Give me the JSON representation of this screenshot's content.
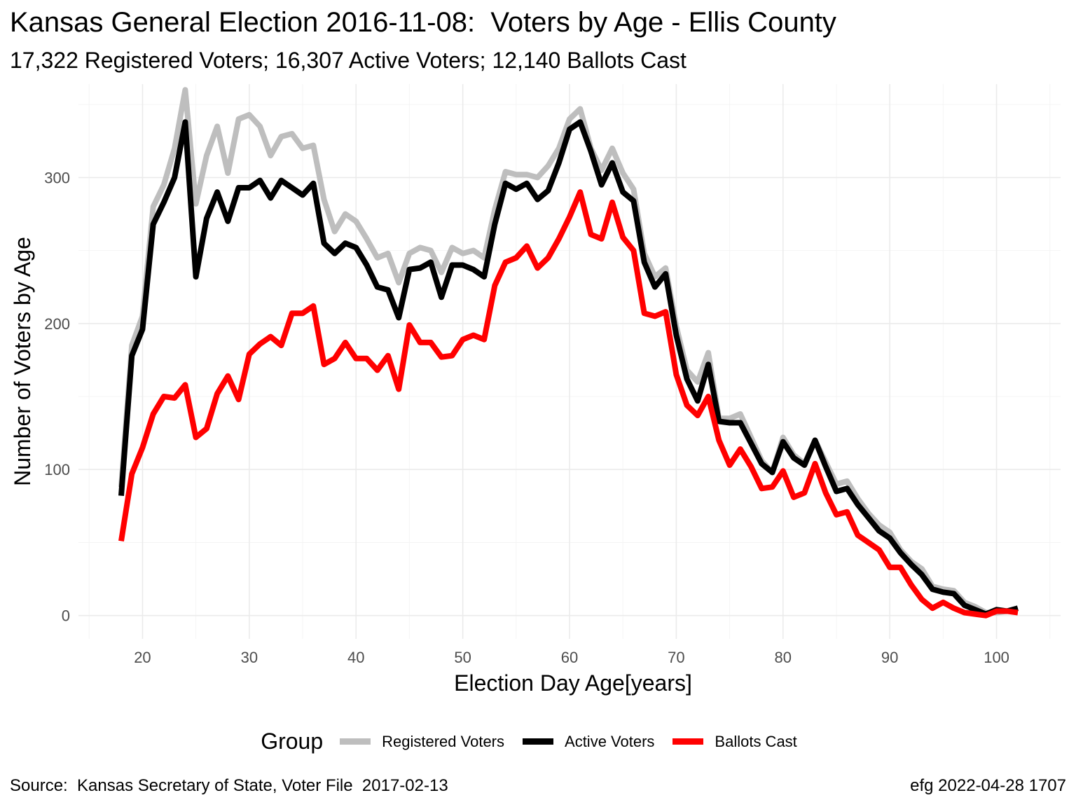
{
  "chart_data": {
    "type": "line",
    "title": "Kansas General Election 2016-11-08:  Voters by Age - Ellis County",
    "subtitle": "17,322 Registered Voters; 16,307 Active Voters; 12,140 Ballots Cast",
    "xlabel": "Election Day Age[years]",
    "ylabel": "Number of Voters by Age",
    "xlim": [
      14,
      106
    ],
    "ylim": [
      -16,
      364
    ],
    "x_ticks": [
      20,
      30,
      40,
      50,
      60,
      70,
      80,
      90,
      100
    ],
    "y_ticks": [
      0,
      100,
      200,
      300
    ],
    "grid": true,
    "legend_title": "Group",
    "legend_position": "bottom",
    "x": [
      18,
      19,
      20,
      21,
      22,
      23,
      24,
      25,
      26,
      27,
      28,
      29,
      30,
      31,
      32,
      33,
      34,
      35,
      36,
      37,
      38,
      39,
      40,
      41,
      42,
      43,
      44,
      45,
      46,
      47,
      48,
      49,
      50,
      51,
      52,
      53,
      54,
      55,
      56,
      57,
      58,
      59,
      60,
      61,
      62,
      63,
      64,
      65,
      66,
      67,
      68,
      69,
      70,
      71,
      72,
      73,
      74,
      75,
      76,
      77,
      78,
      79,
      80,
      81,
      82,
      83,
      84,
      85,
      86,
      87,
      88,
      89,
      90,
      91,
      92,
      93,
      94,
      95,
      96,
      97,
      98,
      99,
      100,
      101,
      102
    ],
    "series": [
      {
        "name": "Registered Voters",
        "color": "#bebebe",
        "values": [
          88,
          185,
          205,
          280,
          295,
          320,
          360,
          282,
          315,
          335,
          303,
          340,
          343,
          335,
          315,
          328,
          330,
          320,
          322,
          285,
          263,
          275,
          270,
          258,
          245,
          248,
          228,
          248,
          252,
          250,
          235,
          252,
          248,
          250,
          245,
          278,
          304,
          302,
          302,
          300,
          308,
          320,
          340,
          347,
          320,
          305,
          320,
          303,
          292,
          248,
          232,
          238,
          198,
          168,
          160,
          180,
          135,
          135,
          138,
          122,
          106,
          98,
          122,
          110,
          104,
          120,
          105,
          90,
          92,
          80,
          70,
          62,
          57,
          45,
          37,
          32,
          20,
          18,
          17,
          9,
          6,
          2,
          2,
          3,
          3
        ]
      },
      {
        "name": "Active Voters",
        "color": "#000000",
        "values": [
          82,
          178,
          196,
          268,
          283,
          300,
          338,
          232,
          272,
          290,
          270,
          293,
          293,
          298,
          286,
          298,
          293,
          288,
          296,
          255,
          248,
          255,
          252,
          240,
          225,
          223,
          204,
          237,
          238,
          242,
          218,
          240,
          240,
          237,
          232,
          268,
          296,
          292,
          296,
          285,
          291,
          310,
          333,
          338,
          318,
          295,
          310,
          290,
          284,
          242,
          225,
          234,
          192,
          162,
          147,
          172,
          133,
          132,
          132,
          118,
          104,
          98,
          119,
          108,
          103,
          120,
          102,
          85,
          87,
          76,
          67,
          58,
          53,
          43,
          35,
          28,
          18,
          16,
          15,
          7,
          4,
          1,
          4,
          3,
          5
        ]
      },
      {
        "name": "Ballots Cast",
        "color": "#ff0000",
        "values": [
          51,
          97,
          115,
          138,
          150,
          149,
          158,
          122,
          128,
          152,
          164,
          148,
          179,
          186,
          191,
          185,
          207,
          207,
          212,
          172,
          176,
          187,
          176,
          176,
          168,
          178,
          155,
          199,
          187,
          187,
          177,
          178,
          189,
          192,
          189,
          226,
          242,
          245,
          253,
          238,
          245,
          258,
          273,
          290,
          261,
          258,
          283,
          259,
          250,
          207,
          205,
          208,
          165,
          144,
          137,
          150,
          120,
          103,
          114,
          102,
          87,
          88,
          99,
          81,
          84,
          104,
          84,
          69,
          71,
          55,
          50,
          45,
          33,
          33,
          21,
          11,
          5,
          9,
          5,
          2,
          1,
          0,
          3,
          3,
          2
        ]
      }
    ]
  },
  "footer": {
    "source": "Source:  Kansas Secretary of State, Voter File  2017-02-13",
    "stamp": "efg 2022-04-28 1707"
  }
}
